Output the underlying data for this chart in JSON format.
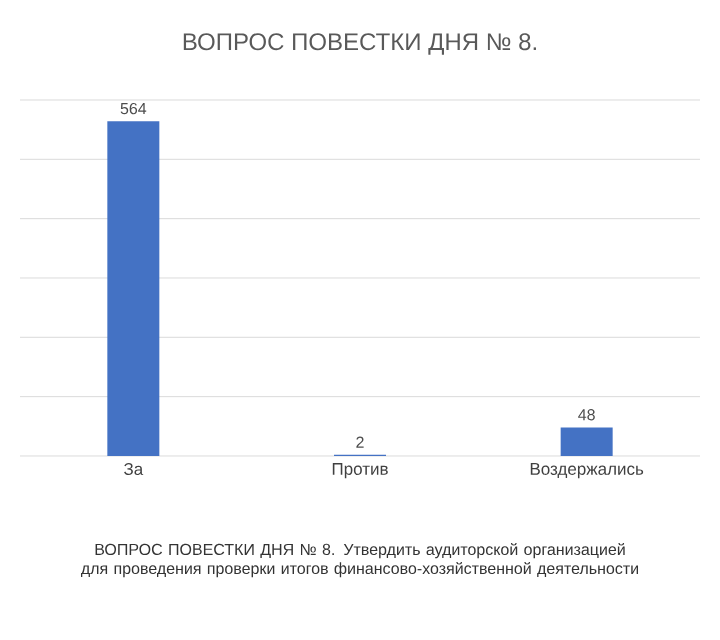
{
  "chart_data": {
    "type": "bar",
    "title": "ВОПРОС ПОВЕСТКИ ДНЯ № 8.",
    "categories": [
      "За",
      "Против",
      "Воздержались"
    ],
    "values": [
      564,
      2,
      48
    ],
    "color": "#4472c4",
    "ylim": [
      0,
      600
    ],
    "yticks": [
      {
        "value": 0,
        "label": null
      },
      {
        "value": 100,
        "label": null
      },
      {
        "value": 200,
        "label": null
      },
      {
        "value": 300,
        "label": null
      },
      {
        "value": 400,
        "label": null
      },
      {
        "value": 500,
        "label": null
      },
      {
        "value": 600,
        "label": null
      }
    ],
    "tick_labels": "x",
    "grid": "y",
    "data_labels": true,
    "annotations": [
      "ВОПРОС ПОВЕСТКИ ДНЯ № 8. Утвердить аудиторской организацией для проведения проверки итогов финансово-хозяйственной деятельности"
    ]
  }
}
